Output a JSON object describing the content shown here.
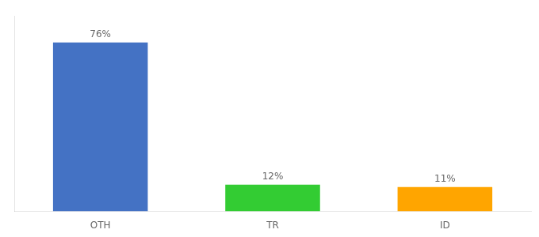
{
  "chart_data": {
    "type": "bar",
    "categories": [
      "OTH",
      "TR",
      "ID"
    ],
    "values": [
      76,
      12,
      11
    ],
    "value_labels": [
      "76%",
      "12%",
      "11%"
    ],
    "data_labels": true,
    "colors": [
      "#4472C4",
      "#33CC33",
      "#FFA500"
    ],
    "ylim": [
      0,
      88
    ],
    "grid": false,
    "tick_labels": "x"
  }
}
